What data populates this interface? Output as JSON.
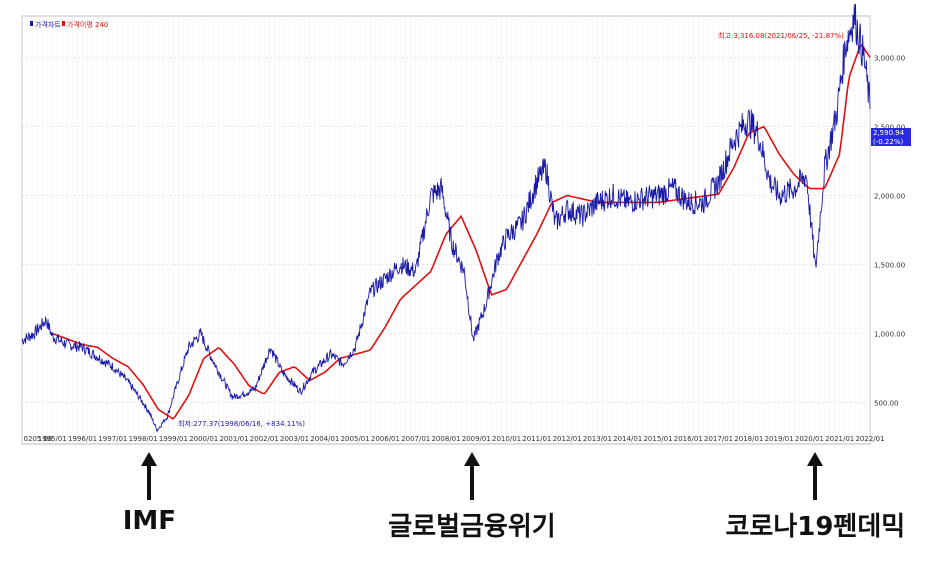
{
  "chart_data": {
    "type": "line",
    "legend": [
      {
        "label": "가격차트",
        "color": "#1a1aa8"
      },
      {
        "label": "가격이평 240",
        "color": "#e01010"
      }
    ],
    "x_ticks": [
      "0205 08",
      "1995/01",
      "1996/01",
      "1997/01",
      "1998/01",
      "1999/01",
      "2000/01",
      "2001/01",
      "2002/01",
      "2003/01",
      "2004/01",
      "2005/01",
      "2006/01",
      "2007/01",
      "2008/01",
      "2009/01",
      "2010/01",
      "2011/01",
      "2012/01",
      "2013/01",
      "2014/01",
      "2015/01",
      "2016/01",
      "2017/01",
      "2018/01",
      "2019/01",
      "2020/01",
      "2021/01",
      "2022/01"
    ],
    "y_ticks": [
      "3,000.00",
      "2,500.00",
      "2,000.00",
      "1,500.00",
      "1,000.00",
      "500.00"
    ],
    "y_values": [
      3000,
      2500,
      2000,
      1500,
      1000,
      500
    ],
    "ylim": [
      200,
      3300
    ],
    "xlim": [
      1994.0,
      2022.0
    ],
    "price_series": {
      "name": "가격차트",
      "color": "#1a1aa8",
      "x": [
        1994.0,
        1994.4,
        1994.8,
        1995.0,
        1995.5,
        1996.0,
        1996.5,
        1997.0,
        1997.5,
        1997.9,
        1998.2,
        1998.46,
        1998.8,
        1999.1,
        1999.5,
        1999.9,
        2000.2,
        2000.6,
        2000.95,
        2001.3,
        2001.7,
        2002.2,
        2002.6,
        2003.2,
        2003.6,
        2004.2,
        2004.6,
        2005.0,
        2005.5,
        2006.0,
        2006.5,
        2007.0,
        2007.5,
        2007.85,
        2008.2,
        2008.6,
        2008.9,
        2009.3,
        2009.7,
        2010.0,
        2010.5,
        2011.0,
        2011.3,
        2011.6,
        2012.0,
        2012.5,
        2013.0,
        2013.5,
        2014.0,
        2014.5,
        2015.0,
        2015.5,
        2016.0,
        2016.5,
        2017.0,
        2017.5,
        2017.95,
        2018.3,
        2018.7,
        2019.0,
        2019.5,
        2019.9,
        2020.2,
        2020.5,
        2020.9,
        2021.2,
        2021.48,
        2021.8,
        2022.0
      ],
      "y": [
        950,
        1000,
        1100,
        980,
        920,
        900,
        830,
        760,
        650,
        530,
        430,
        300,
        400,
        620,
        900,
        1000,
        850,
        680,
        540,
        560,
        600,
        900,
        720,
        580,
        720,
        850,
        780,
        900,
        1300,
        1400,
        1500,
        1450,
        2000,
        2050,
        1650,
        1450,
        950,
        1200,
        1550,
        1700,
        1800,
        2100,
        2200,
        1800,
        1900,
        1850,
        1950,
        2000,
        1950,
        1980,
        2000,
        2050,
        1950,
        1950,
        2100,
        2400,
        2550,
        2450,
        2100,
        2000,
        2050,
        2150,
        1460,
        2200,
        2600,
        3100,
        3300,
        3000,
        2650
      ]
    },
    "ma_series": {
      "name": "가격이평 240",
      "color": "#e01010",
      "x": [
        1995.0,
        1995.5,
        1996.0,
        1996.5,
        1997.0,
        1997.5,
        1998.0,
        1998.5,
        1999.0,
        1999.5,
        2000.0,
        2000.5,
        2001.0,
        2001.5,
        2002.0,
        2002.5,
        2003.0,
        2003.5,
        2004.0,
        2004.5,
        2005.0,
        2005.5,
        2006.0,
        2006.5,
        2007.0,
        2007.5,
        2008.0,
        2008.5,
        2009.0,
        2009.5,
        2010.0,
        2010.5,
        2011.0,
        2011.5,
        2012.0,
        2013.0,
        2014.0,
        2015.0,
        2016.0,
        2017.0,
        2017.5,
        2018.0,
        2018.5,
        2019.0,
        2019.5,
        2020.0,
        2020.5,
        2021.0,
        2021.3,
        2021.7,
        2022.0
      ],
      "y": [
        1000,
        960,
        920,
        900,
        820,
        760,
        630,
        450,
        380,
        550,
        820,
        900,
        780,
        620,
        560,
        720,
        760,
        660,
        720,
        820,
        850,
        880,
        1050,
        1250,
        1350,
        1450,
        1720,
        1850,
        1600,
        1280,
        1320,
        1520,
        1720,
        1950,
        2000,
        1950,
        1950,
        1950,
        1980,
        2010,
        2200,
        2450,
        2500,
        2300,
        2150,
        2050,
        2050,
        2300,
        2850,
        3100,
        3000
      ]
    },
    "annotations": {
      "high": "최고:3,316.08(2021/06/25, -21.87%)",
      "low": "최저:277.37(1998/06/16, +834.11%)",
      "current_price": "2,590.94",
      "current_change": "(-0.22%)"
    },
    "ylabel": "",
    "xlabel": "",
    "grid": true
  },
  "callouts": [
    {
      "label": "IMF",
      "x_year": 1998.2
    },
    {
      "label": "글로벌금융위기",
      "x_year": 2008.85
    },
    {
      "label": "코로나19펜데믹",
      "x_year": 2020.2
    }
  ]
}
